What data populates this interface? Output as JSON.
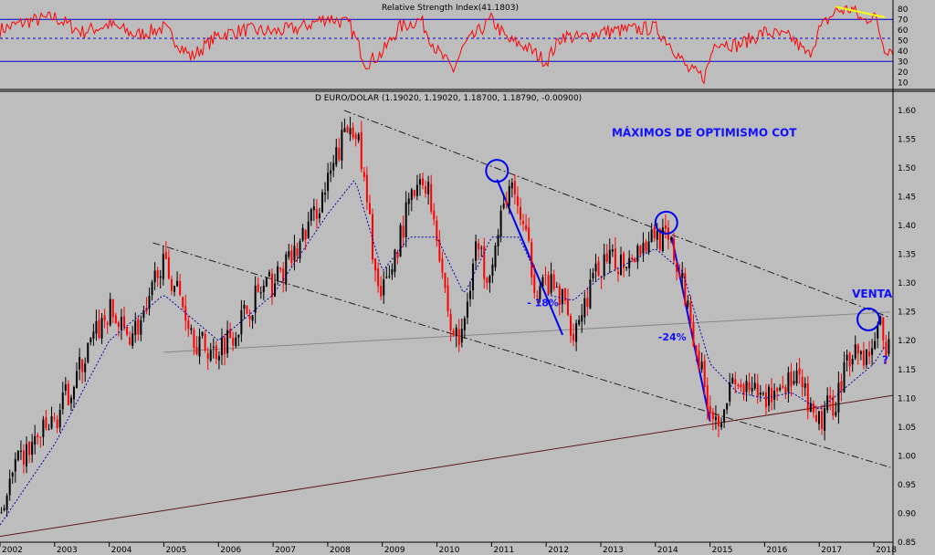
{
  "chart_data": [
    {
      "type": "line",
      "title": "Relative Strength Index(41.1803)",
      "ylim": [
        5,
        85
      ],
      "yticks": [
        10,
        20,
        30,
        40,
        50,
        60,
        70,
        80
      ],
      "reference_lines": [
        30,
        52,
        70
      ],
      "series": [
        {
          "x": [
            2002.0,
            2002.5,
            2003.0,
            2003.5,
            2004.0,
            2004.5,
            2005.0,
            2005.5,
            2006.0,
            2006.5,
            2007.0,
            2007.5,
            2008.0,
            2008.4,
            2008.7,
            2009.0,
            2009.3,
            2009.7,
            2010.0,
            2010.3,
            2010.5,
            2010.8,
            2011.0,
            2011.3,
            2011.6,
            2012.0,
            2012.3,
            2012.6,
            2013.0,
            2013.5,
            2014.0,
            2014.3,
            2014.6,
            2014.9,
            2015.1,
            2015.5,
            2016.0,
            2016.5,
            2016.8,
            2017.0,
            2017.3,
            2017.6,
            2017.8,
            2018.0,
            2018.2
          ],
          "values": [
            60,
            68,
            72,
            58,
            65,
            55,
            62,
            34,
            55,
            60,
            58,
            62,
            72,
            65,
            28,
            38,
            62,
            70,
            40,
            22,
            45,
            60,
            70,
            50,
            45,
            30,
            55,
            52,
            58,
            60,
            62,
            45,
            22,
            15,
            50,
            45,
            58,
            52,
            35,
            60,
            78,
            80,
            68,
            75,
            42
          ]
        }
      ],
      "annotations": [
        {
          "type": "trendline",
          "color": "#ffff00",
          "from": [
            2017.3,
            82
          ],
          "to": [
            2018.2,
            72
          ]
        }
      ],
      "grid": false
    },
    {
      "type": "candlestick",
      "title": "D EURO/DOLAR (1.19020, 1.19020, 1.18700, 1.18790, -0.00900)",
      "ylim": [
        0.85,
        1.63
      ],
      "yticks": [
        0.85,
        0.9,
        0.95,
        1.0,
        1.05,
        1.1,
        1.15,
        1.2,
        1.25,
        1.3,
        1.35,
        1.4,
        1.45,
        1.5,
        1.55,
        1.6
      ],
      "x_labels": [
        "2002",
        "2003",
        "2004",
        "2005",
        "2006",
        "2007",
        "2008",
        "2009",
        "2010",
        "2011",
        "2012",
        "2013",
        "2014",
        "2015",
        "2016",
        "2017",
        "2018"
      ],
      "x_range": [
        2002.0,
        2018.35
      ],
      "price_path": {
        "x": [
          2002.0,
          2002.3,
          2002.6,
          2003.0,
          2003.4,
          2003.8,
          2004.0,
          2004.3,
          2004.7,
          2004.9,
          2005.2,
          2005.6,
          2005.9,
          2006.3,
          2006.7,
          2007.0,
          2007.4,
          2007.8,
          2008.0,
          2008.3,
          2008.5,
          2008.8,
          2008.95,
          2009.2,
          2009.5,
          2009.8,
          2010.0,
          2010.25,
          2010.45,
          2010.7,
          2010.9,
          2011.1,
          2011.3,
          2011.5,
          2011.8,
          2012.0,
          2012.3,
          2012.5,
          2012.8,
          2013.0,
          2013.4,
          2013.8,
          2014.0,
          2014.3,
          2014.6,
          2014.9,
          2015.1,
          2015.4,
          2015.7,
          2016.0,
          2016.4,
          2016.7,
          2016.9,
          2017.0,
          2017.3,
          2017.6,
          2017.9,
          2018.1,
          2018.25
        ],
        "values": [
          0.9,
          0.98,
          1.02,
          1.06,
          1.14,
          1.22,
          1.25,
          1.21,
          1.24,
          1.34,
          1.3,
          1.2,
          1.18,
          1.22,
          1.28,
          1.3,
          1.35,
          1.43,
          1.47,
          1.56,
          1.58,
          1.38,
          1.26,
          1.34,
          1.44,
          1.48,
          1.39,
          1.22,
          1.2,
          1.37,
          1.32,
          1.37,
          1.47,
          1.43,
          1.3,
          1.3,
          1.27,
          1.22,
          1.29,
          1.33,
          1.34,
          1.37,
          1.39,
          1.36,
          1.26,
          1.12,
          1.06,
          1.12,
          1.11,
          1.1,
          1.13,
          1.12,
          1.05,
          1.06,
          1.1,
          1.19,
          1.17,
          1.23,
          1.19
        ]
      },
      "moving_average": {
        "x": [
          2002.0,
          2003.0,
          2004.0,
          2005.0,
          2006.0,
          2007.0,
          2008.0,
          2008.5,
          2009.0,
          2009.5,
          2010.0,
          2010.5,
          2011.0,
          2011.5,
          2012.0,
          2012.5,
          2013.0,
          2014.0,
          2014.5,
          2015.0,
          2015.5,
          2016.0,
          2016.5,
          2017.0,
          2017.5,
          2018.0,
          2018.2
        ],
        "values": [
          0.88,
          1.02,
          1.2,
          1.28,
          1.2,
          1.28,
          1.42,
          1.48,
          1.32,
          1.38,
          1.38,
          1.28,
          1.38,
          1.38,
          1.28,
          1.27,
          1.31,
          1.36,
          1.32,
          1.16,
          1.11,
          1.1,
          1.11,
          1.08,
          1.12,
          1.16,
          1.19
        ]
      },
      "trendlines": [
        {
          "style": "dashdot",
          "from": [
            2008.3,
            1.6
          ],
          "to": [
            2018.3,
            1.24
          ]
        },
        {
          "style": "dashdot",
          "from": [
            2004.8,
            1.37
          ],
          "to": [
            2018.3,
            0.98
          ]
        },
        {
          "style": "solid",
          "color": "#888888",
          "from": [
            2005.0,
            1.18
          ],
          "to": [
            2018.3,
            1.25
          ]
        },
        {
          "style": "solid",
          "color": "#5a1a1a",
          "from": [
            2002.0,
            0.86
          ],
          "to": [
            2018.35,
            1.105
          ]
        },
        {
          "style": "solid",
          "color": "#0000ee",
          "from": [
            2011.1,
            1.48
          ],
          "to": [
            2012.3,
            1.21
          ]
        },
        {
          "style": "solid",
          "color": "#0000ee",
          "from": [
            2014.3,
            1.38
          ],
          "to": [
            2015.0,
            1.06
          ]
        }
      ],
      "circles": [
        {
          "x": 2011.1,
          "y": 1.495
        },
        {
          "x": 2014.2,
          "y": 1.405
        },
        {
          "x": 2017.9,
          "y": 1.237
        }
      ],
      "annotations": [
        {
          "text": "MÁXIMOS DE OPTIMISMO COT",
          "x": 2013.2,
          "y": 1.555
        },
        {
          "text": "- 18%",
          "x": 2011.65,
          "y": 1.26
        },
        {
          "text": "-24%",
          "x": 2014.05,
          "y": 1.2
        },
        {
          "text": "VENTA",
          "x": 2017.6,
          "y": 1.275
        },
        {
          "text": "?",
          "x": 2018.15,
          "y": 1.16
        }
      ],
      "grid": false
    }
  ],
  "colors": {
    "background": "#bdbdbd",
    "candle": "#ff0000",
    "candle_alt": "#000000",
    "rsi": "#ff0000",
    "guide": "#0000cc",
    "ma": "#0000aa",
    "annotation": "#1010ff"
  }
}
